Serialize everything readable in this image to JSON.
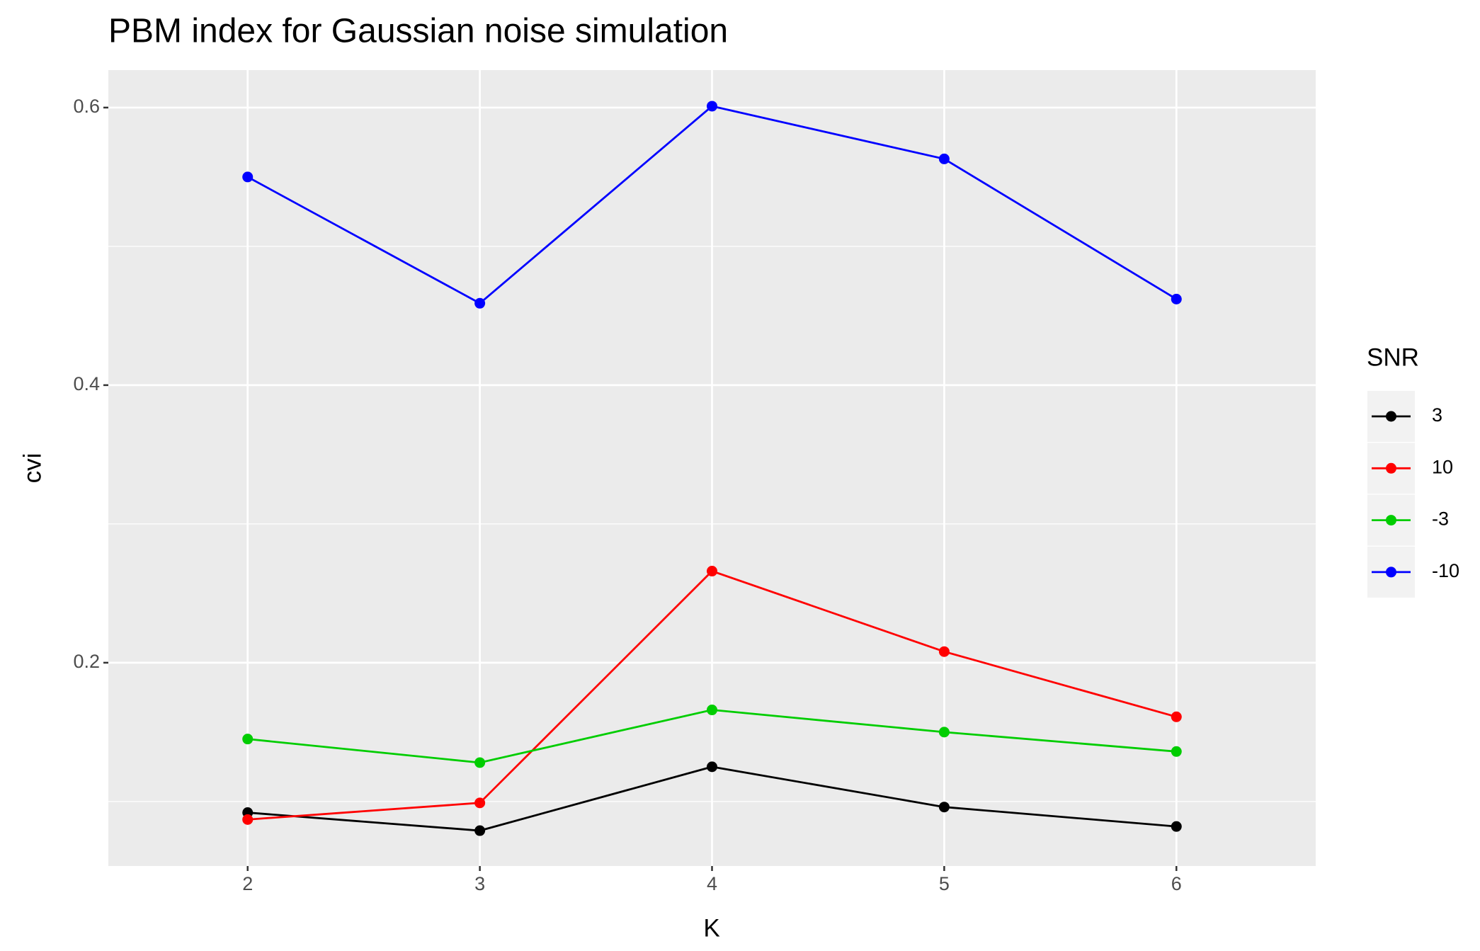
{
  "chart_data": {
    "type": "line",
    "title": "PBM index for Gaussian noise simulation",
    "x_label": "K",
    "y_label": "cvi",
    "legend_title": "SNR",
    "x": [
      2,
      3,
      4,
      5,
      6
    ],
    "series": [
      {
        "name": "3",
        "color": "#000000",
        "values": [
          0.092,
          0.079,
          0.125,
          0.096,
          0.082
        ]
      },
      {
        "name": "10",
        "color": "#ff0000",
        "values": [
          0.087,
          0.099,
          0.266,
          0.208,
          0.161
        ]
      },
      {
        "name": "-3",
        "color": "#00cd00",
        "values": [
          0.145,
          0.128,
          0.166,
          0.15,
          0.136
        ]
      },
      {
        "name": "-10",
        "color": "#0000ff",
        "values": [
          0.55,
          0.459,
          0.601,
          0.563,
          0.462
        ]
      }
    ],
    "xlim": [
      1.4,
      6.6
    ],
    "xticks": [
      2,
      3,
      4,
      5,
      6
    ],
    "ylim": [
      0.0535,
      0.627
    ],
    "yticks": [
      0.2,
      0.4,
      0.6
    ],
    "grid": true,
    "legend": "right"
  }
}
